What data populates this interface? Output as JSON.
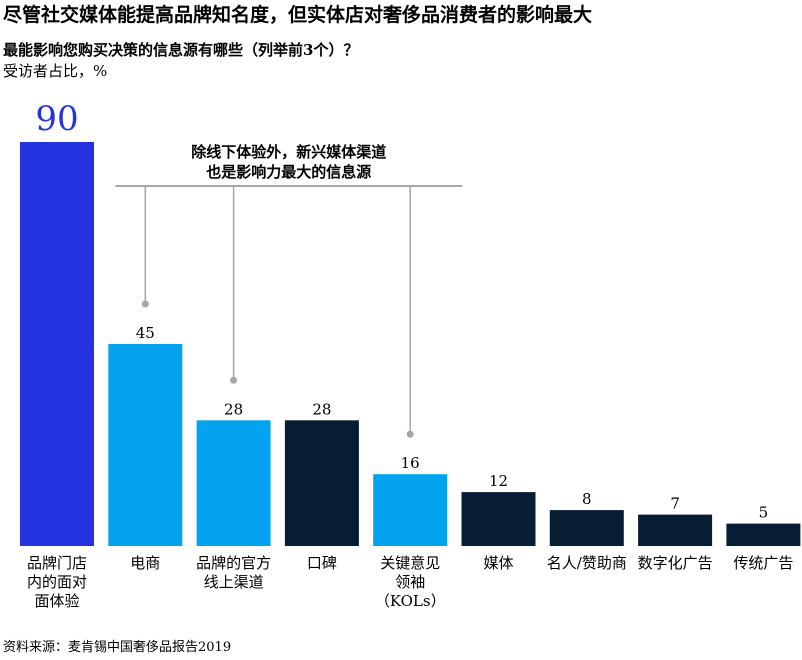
{
  "title": "尽管社交媒体能提高品牌知名度，但实体店对奢侈品消费者的影响最大",
  "subtitle": "最能影响您购买决策的信息源有哪些（列举前3个）？",
  "unit_label": "受访者占比，%",
  "source": "资料来源：麦肯锡中国奢侈品报告2019",
  "colors": {
    "accent_blue": "#2433e0",
    "light_blue": "#04a3f0",
    "navy": "#071d33",
    "bracket_gray": "#a6a6a6"
  },
  "chart_data": {
    "type": "bar",
    "categories": [
      [
        "品牌门店",
        "内的面对",
        "面体验"
      ],
      [
        "电商"
      ],
      [
        "品牌的官方",
        "线上渠道"
      ],
      [
        "口碑"
      ],
      [
        "关键意见",
        "领袖",
        "（KOLs）"
      ],
      [
        "媒体"
      ],
      [
        "名人/赞助商"
      ],
      [
        "数字化广告"
      ],
      [
        "传统广告"
      ]
    ],
    "values": [
      90,
      45,
      28,
      28,
      16,
      12,
      8,
      7,
      5
    ],
    "value_labels": [
      "90",
      "45",
      "28",
      "28",
      "16",
      "12",
      "8",
      "7",
      "5"
    ],
    "bar_colors": [
      "#2433e0",
      "#04a3f0",
      "#04a3f0",
      "#071d33",
      "#04a3f0",
      "#071d33",
      "#071d33",
      "#071d33",
      "#071d33"
    ],
    "highlighted_categories": [
      1,
      2,
      4
    ],
    "annotation": [
      "除线下体验外，新兴媒体渠道",
      "也是影响力最大的信息源"
    ],
    "ylim": [
      0,
      90
    ],
    "grid": false,
    "legend": "none"
  }
}
